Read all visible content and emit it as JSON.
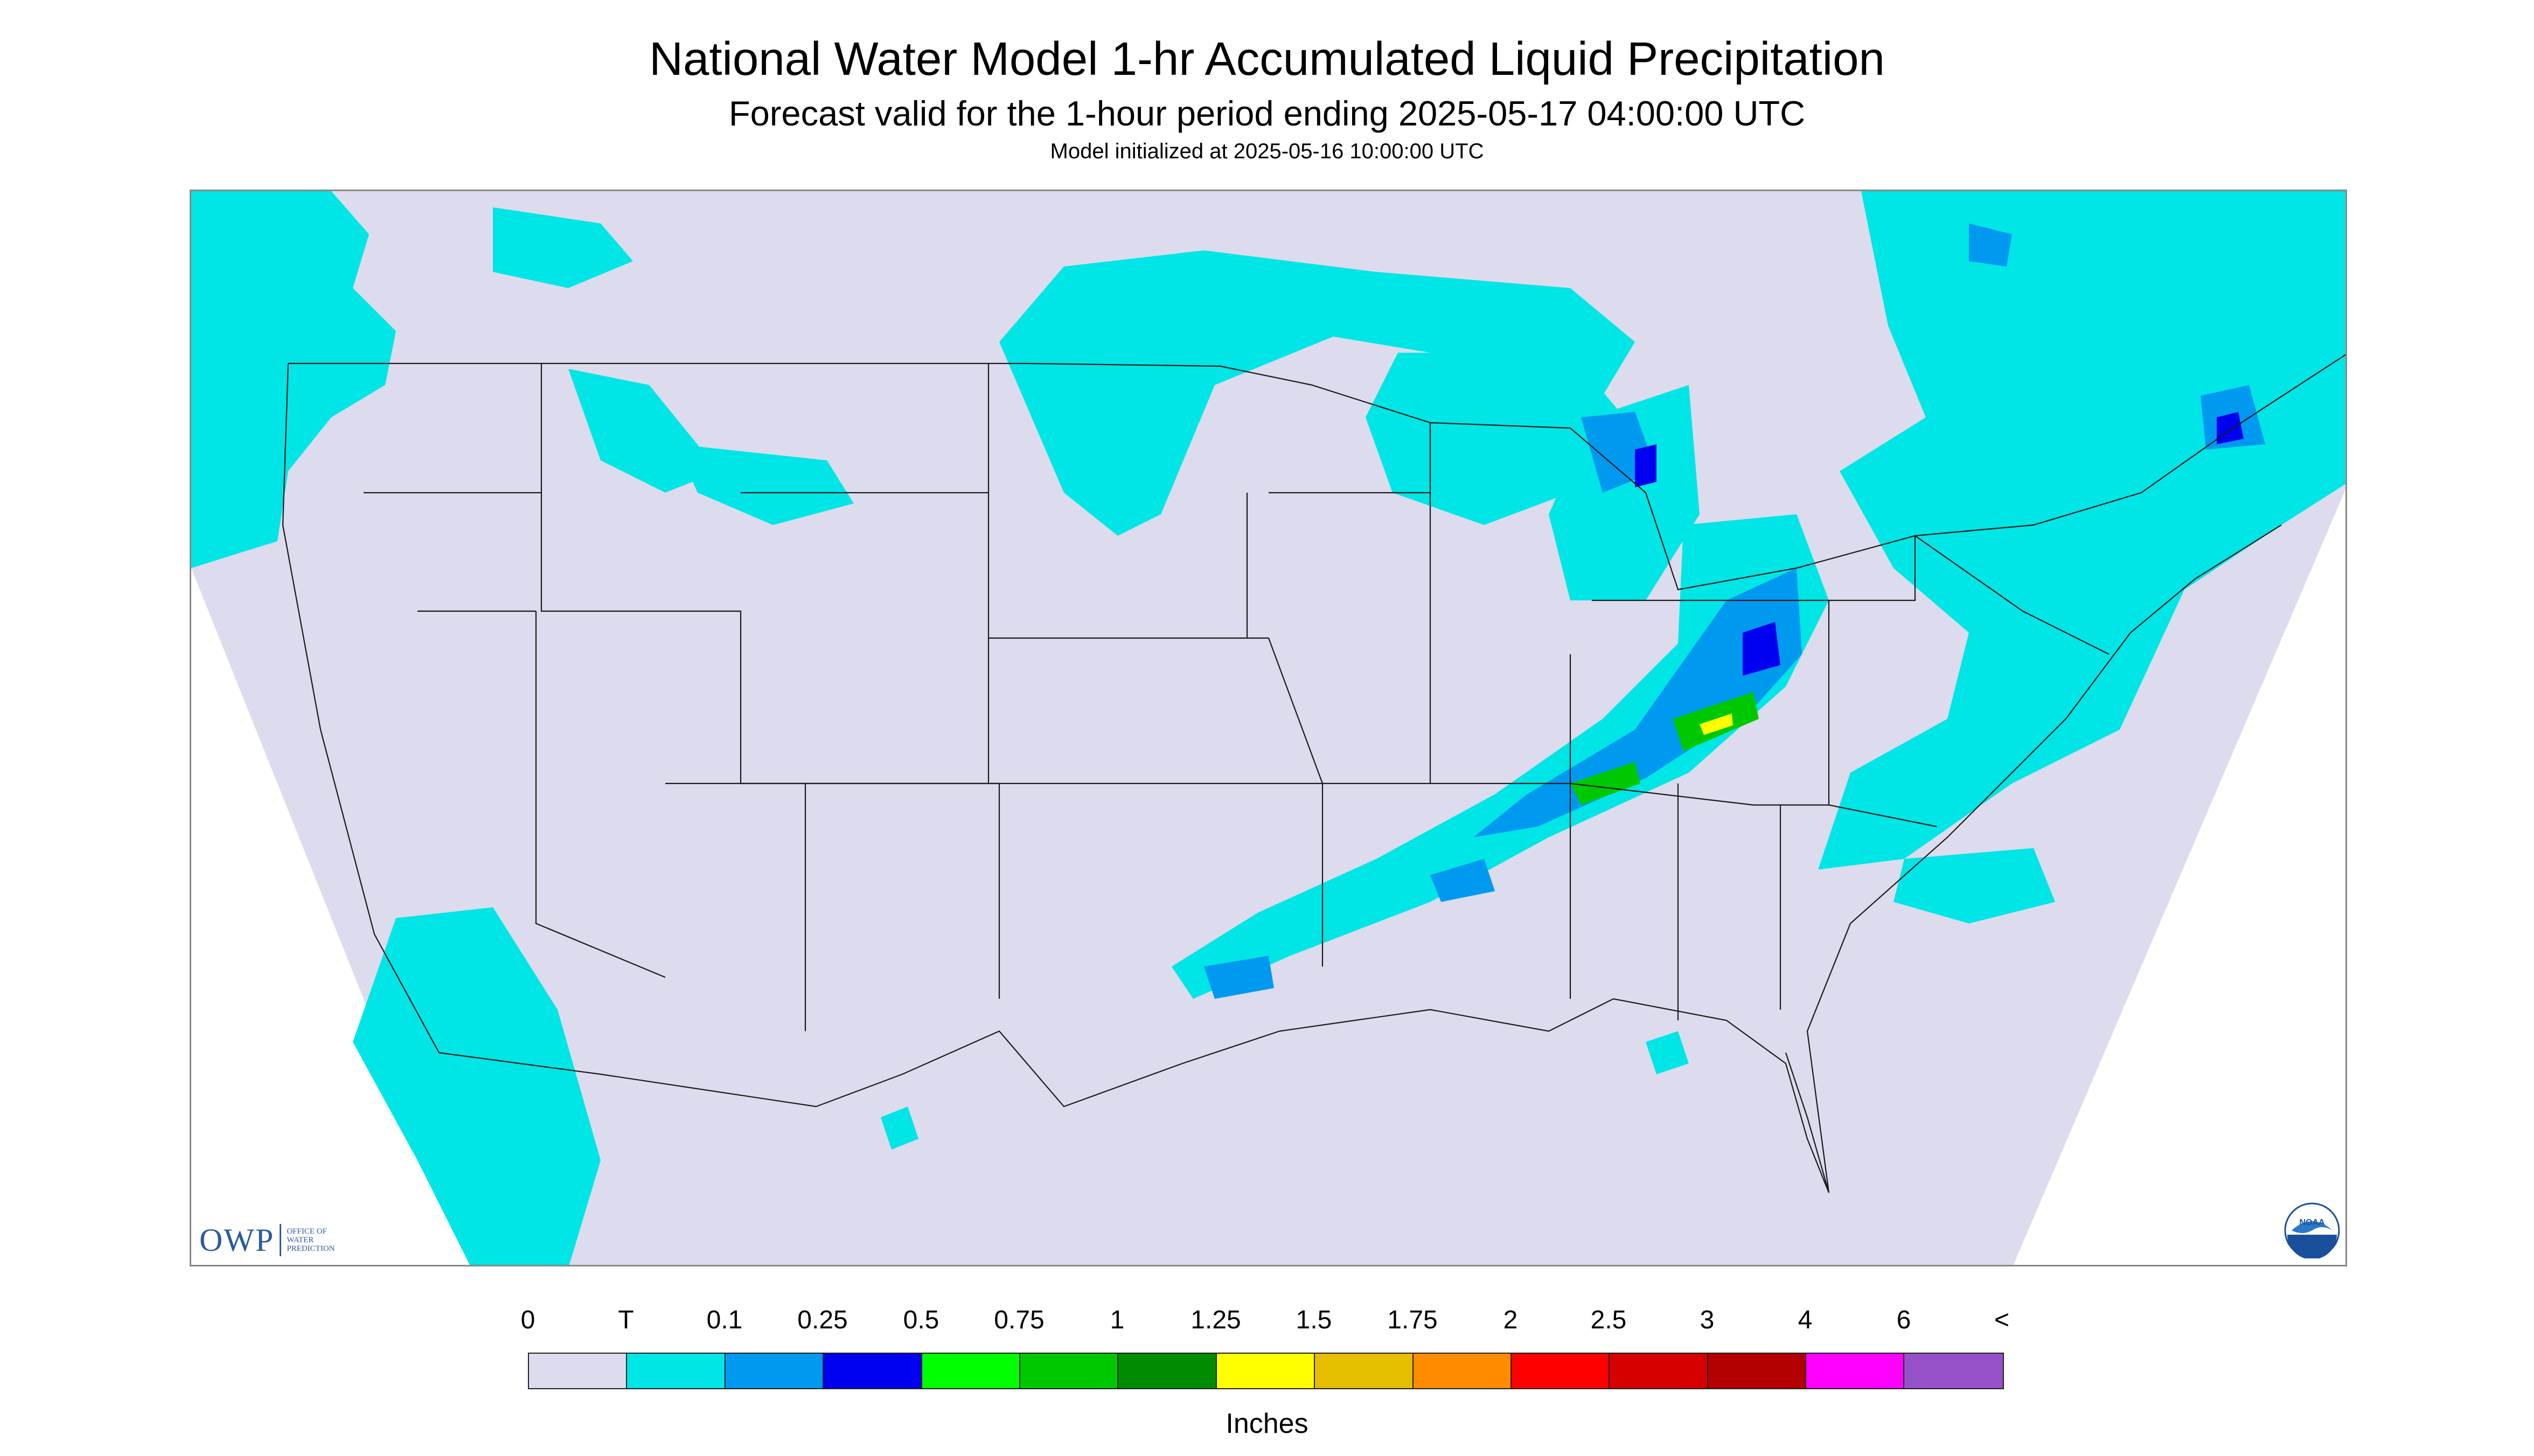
{
  "title": "National Water Model 1-hr Accumulated Liquid Precipitation",
  "subtitle": "Forecast valid for the 1-hour period ending 2025-05-17 04:00:00 UTC",
  "init_line": "Model initialized at 2025-05-16 10:00:00 UTC",
  "logos": {
    "owp_mark": "OWP",
    "owp_text": "OFFICE OF WATER PREDICTION",
    "noaa_text": "NOAA"
  },
  "legend": {
    "labels": [
      "0",
      "T",
      "0.1",
      "0.25",
      "0.5",
      "0.75",
      "1",
      "1.25",
      "1.5",
      "1.75",
      "2",
      "2.5",
      "3",
      "4",
      "6",
      "<"
    ],
    "colors": [
      "#dcdcee",
      "#00e5e5",
      "#0099f0",
      "#0000f0",
      "#00ff00",
      "#00c800",
      "#008c00",
      "#ffff00",
      "#e6be00",
      "#ff8c00",
      "#ff0000",
      "#d70000",
      "#b40000",
      "#ff00ff",
      "#9650c8"
    ],
    "units": "Inches"
  },
  "map_colors": {
    "background": "#dcdcee",
    "trace": "#00e5e5",
    "light": "#0099f0",
    "medium": "#0000f0",
    "heavy": "#00ff00",
    "heavier": "#00c800",
    "peak": "#ffff00",
    "boundary": "#1a1a1a"
  }
}
